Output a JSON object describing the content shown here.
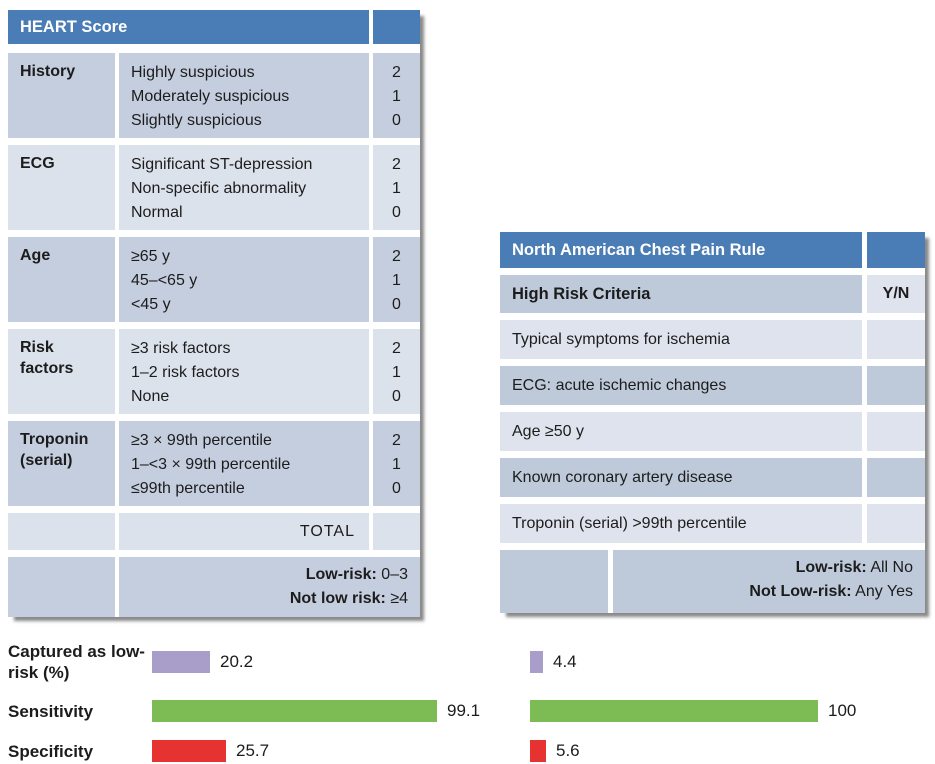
{
  "heart_table": {
    "title": "HEART Score",
    "rows": [
      {
        "category": "History",
        "options": [
          "Highly suspicious",
          "Moderately suspicious",
          "Slightly suspicious"
        ],
        "scores": [
          "2",
          "1",
          "0"
        ]
      },
      {
        "category": "ECG",
        "options": [
          "Significant ST-depression",
          "Non-specific abnormality",
          "Normal"
        ],
        "scores": [
          "2",
          "1",
          "0"
        ]
      },
      {
        "category": "Age",
        "options": [
          "≥65 y",
          "45–<65 y",
          "<45 y"
        ],
        "scores": [
          "2",
          "1",
          "0"
        ]
      },
      {
        "category": "Risk factors",
        "options": [
          "≥3 risk factors",
          "1–2 risk factors",
          "None"
        ],
        "scores": [
          "2",
          "1",
          "0"
        ]
      },
      {
        "category": "Troponin (serial)",
        "options": [
          "≥3 × 99th percentile",
          "1–<3 × 99th percentile",
          "≤99th percentile"
        ],
        "scores": [
          "2",
          "1",
          "0"
        ]
      }
    ],
    "total_label": "TOTAL",
    "footer": [
      {
        "label": "Low-risk:",
        "value": "0–3"
      },
      {
        "label": "Not low risk:",
        "value": "≥4"
      }
    ]
  },
  "nacpr_table": {
    "title": "North American Chest Pain Rule",
    "criteria_header": "High Risk Criteria",
    "yn_header": "Y/N",
    "criteria": [
      "Typical symptoms for ischemia",
      "ECG: acute ischemic changes",
      "Age ≥50 y",
      "Known coronary artery disease",
      "Troponin (serial) >99th percentile"
    ],
    "footer": [
      {
        "label": "Low-risk:",
        "value": "All No"
      },
      {
        "label": "Not Low-risk:",
        "value": "Any Yes"
      }
    ]
  },
  "chart_data": {
    "type": "bar",
    "orientation": "horizontal",
    "metrics": [
      "Captured as low-risk (%)",
      "Sensitivity",
      "Specificity"
    ],
    "series": [
      {
        "name": "HEART Score",
        "values": [
          20.2,
          99.1,
          25.7
        ]
      },
      {
        "name": "North American Chest Pain Rule",
        "values": [
          4.4,
          100,
          5.6
        ]
      }
    ],
    "row_colors": [
      "#a99dc9",
      "#7dbc55",
      "#e63230"
    ],
    "xlim": [
      0,
      100
    ],
    "value_labels_shown": true,
    "legend": "none",
    "grid": false
  },
  "colors": {
    "header_blue": "#4a7cb5",
    "heart_row_dark": "#c5cedf",
    "heart_row_light": "#dce2ec",
    "nacpr_row_dark": "#becada",
    "nacpr_row_light": "#dee3ed",
    "bar_captured": "#a99dc9",
    "bar_sensitivity": "#7dbc55",
    "bar_specificity": "#e63230"
  }
}
